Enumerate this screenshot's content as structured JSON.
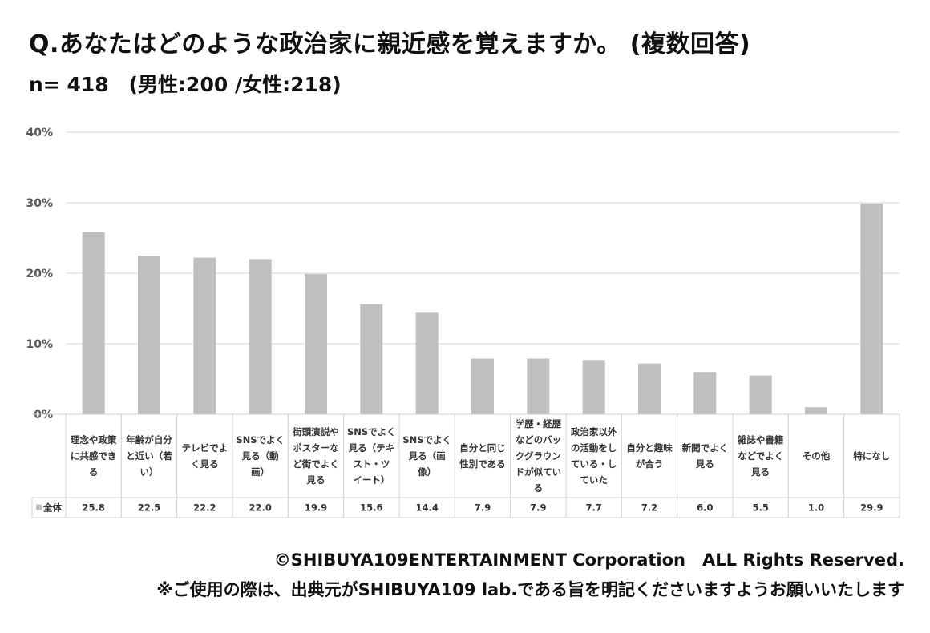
{
  "header": {
    "title": "Q.あなたはどのような政治家に親近感を覚えますか。 (複数回答)",
    "subtitle": "n= 418　(男性:200 /女性:218)"
  },
  "footer": {
    "copyright": "©SHIBUYA109ENTERTAINMENT Corporation　ALL Rights Reserved.",
    "notice": "※ご使用の際は、出典元がSHIBUYA109 lab.である旨を明記くださいますようお願いいたします"
  },
  "colors": {
    "bar": "#c0c0c0",
    "grid": "#d9d9d9",
    "table_border": "#d0d0d0",
    "axis_text": "#595959"
  },
  "chart_data": {
    "type": "bar",
    "ylim": [
      0,
      40
    ],
    "yticks": [
      "0%",
      "10%",
      "20%",
      "30%",
      "40%"
    ],
    "ytick_values": [
      0,
      10,
      20,
      30,
      40
    ],
    "grid": true,
    "categories": [
      [
        "理念や政策",
        "に共感でき",
        "る"
      ],
      [
        "年齢が自分",
        "と近い（若",
        "い）"
      ],
      [
        "テレビでよ",
        "く見る"
      ],
      [
        "SNSでよく",
        "見る（動",
        "画）"
      ],
      [
        "街頭演説や",
        "ポスターな",
        "ど街でよく",
        "見る"
      ],
      [
        "SNSでよく",
        "見る（テキ",
        "スト・ツ",
        "イート）"
      ],
      [
        "SNSでよく",
        "見る（画",
        "像）"
      ],
      [
        "自分と同じ",
        "性別である"
      ],
      [
        "学歴・経歴",
        "などのバッ",
        "クグラウン",
        "ドが似てい",
        "る"
      ],
      [
        "政治家以外",
        "の活動をし",
        "ている・し",
        "ていた"
      ],
      [
        "自分と趣味",
        "が合う"
      ],
      [
        "新聞でよく",
        "見る"
      ],
      [
        "雑誌や書籍",
        "などでよく",
        "見る"
      ],
      [
        "その他"
      ],
      [
        "特になし"
      ]
    ],
    "series": [
      {
        "name": "全体",
        "values": [
          25.8,
          22.5,
          22.2,
          22.0,
          19.9,
          15.6,
          14.4,
          7.9,
          7.9,
          7.7,
          7.2,
          6.0,
          5.5,
          1.0,
          29.9
        ],
        "labels": [
          "25.8",
          "22.5",
          "22.2",
          "22.0",
          "19.9",
          "15.6",
          "14.4",
          "7.9",
          "7.9",
          "7.7",
          "7.2",
          "6.0",
          "5.5",
          "1.0",
          "29.9"
        ]
      }
    ]
  }
}
